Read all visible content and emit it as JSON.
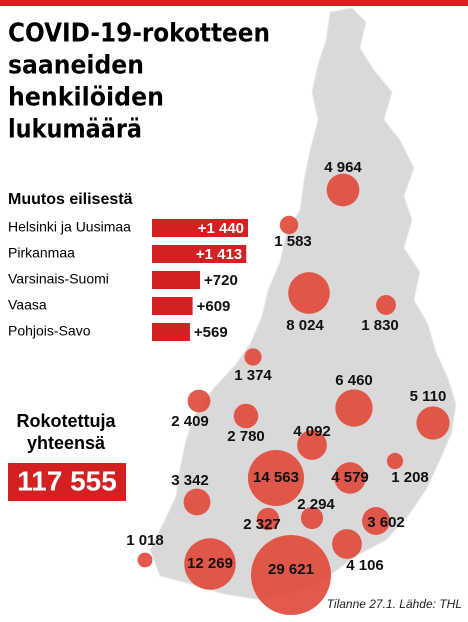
{
  "title": [
    "COVID-19-rokotteen",
    "saaneiden",
    "henkilöiden",
    "lukumäärä"
  ],
  "changes": {
    "title": "Muutos eilisestä",
    "regions": [
      "Helsinki ja Uusimaa",
      "Pirkanmaa",
      "Varsinais-Suomi",
      "Vaasa",
      "Pohjois-Savo"
    ],
    "values": [
      1440,
      1413,
      720,
      609,
      569
    ],
    "value_labels": [
      "+1 440",
      "+1 413",
      "+720",
      "+609",
      "+569"
    ],
    "color": "#d42020"
  },
  "total": {
    "label": [
      "Rokotettuja",
      "yhteensä"
    ],
    "value": 117555,
    "value_label": "117 555",
    "color": "#d42020"
  },
  "bubbles": {
    "values": [
      4964,
      1583,
      8024,
      1830,
      1374,
      6460,
      5110,
      2409,
      2780,
      4092,
      1208,
      14563,
      4579,
      3342,
      2294,
      2327,
      3602,
      1018,
      12269,
      4106,
      29621
    ],
    "value_labels": [
      "4 964",
      "1 583",
      "8 024",
      "1 830",
      "1 374",
      "6 460",
      "5 110",
      "2 409",
      "2 780",
      "4 092",
      "1 208",
      "14 563",
      "4 579",
      "3 342",
      "2 294",
      "2 327",
      "3 602",
      "1 018",
      "12 269",
      "4 106",
      "29 621"
    ],
    "color": "#e0483a"
  },
  "source": "Tilanne 27.1. Lähde: THL"
}
